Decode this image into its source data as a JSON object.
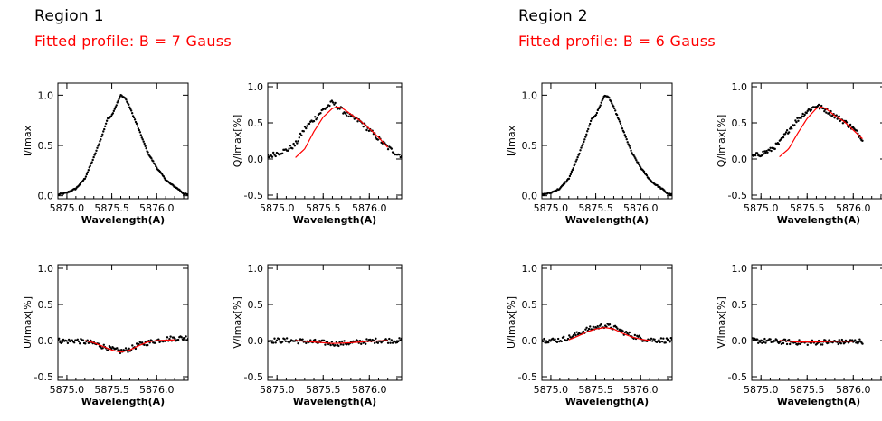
{
  "regions": [
    {
      "title": "Region 1",
      "fit_label": "Fitted profile: B =   7 Gauss"
    },
    {
      "title": "Region 2",
      "fit_label": "Fitted profile: B =   6 Gauss"
    }
  ],
  "colors": {
    "observed": "#000000",
    "fit": "#ff0000",
    "frame": "#000000"
  },
  "chart_data": [
    {
      "type": "scatter",
      "region": "Region 1",
      "xlabel": "Wavelength(A)",
      "ylabel": "I/Imax",
      "xlim": [
        5874.9,
        5876.35
      ],
      "ylim": [
        -0.03,
        1.12
      ],
      "xticks": [
        "5875.0",
        "5875.5",
        "5876.0"
      ],
      "yticks": [
        "0.0",
        "0.5",
        "1.0"
      ],
      "observed_curve": [
        [
          5874.9,
          0.01
        ],
        [
          5875.0,
          0.03
        ],
        [
          5875.1,
          0.07
        ],
        [
          5875.2,
          0.17
        ],
        [
          5875.3,
          0.38
        ],
        [
          5875.4,
          0.62
        ],
        [
          5875.45,
          0.76
        ],
        [
          5875.5,
          0.8
        ],
        [
          5875.55,
          0.9
        ],
        [
          5875.6,
          1.0
        ],
        [
          5875.65,
          0.97
        ],
        [
          5875.7,
          0.88
        ],
        [
          5875.8,
          0.66
        ],
        [
          5875.9,
          0.43
        ],
        [
          5876.0,
          0.28
        ],
        [
          5876.1,
          0.16
        ],
        [
          5876.15,
          0.12
        ],
        [
          5876.25,
          0.06
        ],
        [
          5876.3,
          0.02
        ],
        [
          5876.35,
          0.01
        ]
      ],
      "fit_curve": []
    },
    {
      "type": "scatter",
      "region": "Region 1",
      "xlabel": "Wavelength(A)",
      "ylabel": "Q/Imax[%]",
      "xlim": [
        5874.9,
        5876.35
      ],
      "ylim": [
        -0.55,
        1.05
      ],
      "xticks": [
        "5875.0",
        "5875.5",
        "5876.0"
      ],
      "yticks": [
        "-0.5",
        "0.0",
        "0.5",
        "1.0"
      ],
      "observed_curve": [
        [
          5874.9,
          0.03
        ],
        [
          5875.0,
          0.08
        ],
        [
          5875.1,
          0.12
        ],
        [
          5875.2,
          0.2
        ],
        [
          5875.3,
          0.42
        ],
        [
          5875.4,
          0.55
        ],
        [
          5875.5,
          0.68
        ],
        [
          5875.6,
          0.78
        ],
        [
          5875.7,
          0.68
        ],
        [
          5875.8,
          0.58
        ],
        [
          5875.9,
          0.52
        ],
        [
          5876.0,
          0.4
        ],
        [
          5876.1,
          0.28
        ],
        [
          5876.2,
          0.16
        ],
        [
          5876.3,
          0.07
        ],
        [
          5876.35,
          0.05
        ]
      ],
      "fit_curve": [
        [
          5875.2,
          0.02
        ],
        [
          5875.3,
          0.14
        ],
        [
          5875.4,
          0.38
        ],
        [
          5875.5,
          0.58
        ],
        [
          5875.6,
          0.7
        ],
        [
          5875.65,
          0.72
        ],
        [
          5875.7,
          0.71
        ],
        [
          5875.8,
          0.62
        ],
        [
          5875.9,
          0.53
        ],
        [
          5876.0,
          0.42
        ],
        [
          5876.1,
          0.3
        ],
        [
          5876.2,
          0.16
        ]
      ]
    },
    {
      "type": "scatter",
      "region": "Region 1",
      "xlabel": "Wavelength(A)",
      "ylabel": "U/Imax[%]",
      "xlim": [
        5874.9,
        5876.35
      ],
      "ylim": [
        -0.55,
        1.05
      ],
      "xticks": [
        "5875.0",
        "5875.5",
        "5876.0"
      ],
      "yticks": [
        "-0.5",
        "0.0",
        "0.5",
        "1.0"
      ],
      "observed_curve": [
        [
          5874.9,
          0.0
        ],
        [
          5875.0,
          -0.01
        ],
        [
          5875.1,
          0.0
        ],
        [
          5875.2,
          -0.02
        ],
        [
          5875.3,
          -0.04
        ],
        [
          5875.4,
          -0.08
        ],
        [
          5875.5,
          -0.12
        ],
        [
          5875.6,
          -0.15
        ],
        [
          5875.7,
          -0.12
        ],
        [
          5875.8,
          -0.06
        ],
        [
          5875.9,
          -0.03
        ],
        [
          5876.0,
          0.0
        ],
        [
          5876.1,
          0.02
        ],
        [
          5876.2,
          0.03
        ],
        [
          5876.35,
          0.04
        ]
      ],
      "fit_curve": [
        [
          5875.2,
          0.0
        ],
        [
          5875.3,
          -0.03
        ],
        [
          5875.4,
          -0.08
        ],
        [
          5875.5,
          -0.13
        ],
        [
          5875.6,
          -0.16
        ],
        [
          5875.7,
          -0.13
        ],
        [
          5875.8,
          -0.07
        ],
        [
          5875.9,
          -0.02
        ],
        [
          5876.0,
          0.0
        ],
        [
          5876.2,
          0.01
        ]
      ]
    },
    {
      "type": "scatter",
      "region": "Region 1",
      "xlabel": "Wavelength(A)",
      "ylabel": "V/Imax[%]",
      "xlim": [
        5874.9,
        5876.35
      ],
      "ylim": [
        -0.55,
        1.05
      ],
      "xticks": [
        "5875.0",
        "5875.5",
        "5876.0"
      ],
      "yticks": [
        "-0.5",
        "0.0",
        "0.5",
        "1.0"
      ],
      "observed_curve": [
        [
          5874.9,
          0.0
        ],
        [
          5875.1,
          0.0
        ],
        [
          5875.3,
          -0.01
        ],
        [
          5875.5,
          -0.03
        ],
        [
          5875.6,
          -0.04
        ],
        [
          5875.7,
          -0.04
        ],
        [
          5875.9,
          -0.02
        ],
        [
          5876.1,
          0.0
        ],
        [
          5876.35,
          0.0
        ]
      ],
      "fit_curve": [
        [
          5875.2,
          0.0
        ],
        [
          5875.4,
          -0.02
        ],
        [
          5875.6,
          -0.04
        ],
        [
          5875.8,
          -0.03
        ],
        [
          5876.0,
          -0.01
        ],
        [
          5876.2,
          0.0
        ]
      ]
    },
    {
      "type": "scatter",
      "region": "Region 2",
      "xlabel": "Wavelength(A)",
      "ylabel": "I/Imax",
      "xlim": [
        5874.9,
        5876.35
      ],
      "ylim": [
        -0.03,
        1.12
      ],
      "xticks": [
        "5875.0",
        "5875.5",
        "5876.0"
      ],
      "yticks": [
        "0.0",
        "0.5",
        "1.0"
      ],
      "observed_curve": [
        [
          5874.9,
          0.01
        ],
        [
          5875.0,
          0.03
        ],
        [
          5875.1,
          0.07
        ],
        [
          5875.2,
          0.17
        ],
        [
          5875.3,
          0.38
        ],
        [
          5875.4,
          0.62
        ],
        [
          5875.45,
          0.76
        ],
        [
          5875.5,
          0.8
        ],
        [
          5875.55,
          0.9
        ],
        [
          5875.6,
          1.0
        ],
        [
          5875.65,
          0.97
        ],
        [
          5875.7,
          0.88
        ],
        [
          5875.8,
          0.66
        ],
        [
          5875.9,
          0.43
        ],
        [
          5876.0,
          0.28
        ],
        [
          5876.1,
          0.16
        ],
        [
          5876.15,
          0.12
        ],
        [
          5876.25,
          0.06
        ],
        [
          5876.3,
          0.02
        ],
        [
          5876.35,
          0.01
        ]
      ],
      "fit_curve": []
    },
    {
      "type": "scatter",
      "region": "Region 2",
      "xlabel": "Wavelength(A)",
      "ylabel": "Q/Imax[%]",
      "xlim": [
        5874.9,
        5876.35
      ],
      "ylim": [
        -0.55,
        1.05
      ],
      "xticks": [
        "5875.0",
        "5875.5",
        "5876.0"
      ],
      "yticks": [
        "-0.5",
        "0.0",
        "0.5",
        "1.0"
      ],
      "observed_curve": [
        [
          5874.9,
          0.03
        ],
        [
          5875.0,
          0.07
        ],
        [
          5875.1,
          0.12
        ],
        [
          5875.2,
          0.22
        ],
        [
          5875.3,
          0.4
        ],
        [
          5875.4,
          0.55
        ],
        [
          5875.5,
          0.66
        ],
        [
          5875.6,
          0.74
        ],
        [
          5875.7,
          0.68
        ],
        [
          5875.8,
          0.6
        ],
        [
          5875.9,
          0.52
        ],
        [
          5876.0,
          0.42
        ],
        [
          5876.1,
          0.28
        ]
      ],
      "fit_curve": [
        [
          5875.2,
          0.03
        ],
        [
          5875.3,
          0.14
        ],
        [
          5875.4,
          0.36
        ],
        [
          5875.5,
          0.56
        ],
        [
          5875.6,
          0.7
        ],
        [
          5875.65,
          0.72
        ],
        [
          5875.7,
          0.7
        ],
        [
          5875.8,
          0.6
        ],
        [
          5875.9,
          0.52
        ],
        [
          5876.0,
          0.4
        ],
        [
          5876.1,
          0.28
        ]
      ]
    },
    {
      "type": "scatter",
      "region": "Region 2",
      "xlabel": "Wavelength(A)",
      "ylabel": "U/Imax[%]",
      "xlim": [
        5874.9,
        5876.35
      ],
      "ylim": [
        -0.55,
        1.05
      ],
      "xticks": [
        "5875.0",
        "5875.5",
        "5876.0"
      ],
      "yticks": [
        "-0.5",
        "0.0",
        "0.5",
        "1.0"
      ],
      "observed_curve": [
        [
          5874.9,
          0.01
        ],
        [
          5875.0,
          0.0
        ],
        [
          5875.1,
          0.01
        ],
        [
          5875.2,
          0.04
        ],
        [
          5875.3,
          0.09
        ],
        [
          5875.4,
          0.15
        ],
        [
          5875.5,
          0.18
        ],
        [
          5875.6,
          0.21
        ],
        [
          5875.7,
          0.18
        ],
        [
          5875.8,
          0.12
        ],
        [
          5875.9,
          0.07
        ],
        [
          5876.0,
          0.03
        ],
        [
          5876.1,
          0.01
        ],
        [
          5876.35,
          0.0
        ]
      ],
      "fit_curve": [
        [
          5875.2,
          0.01
        ],
        [
          5875.3,
          0.06
        ],
        [
          5875.4,
          0.12
        ],
        [
          5875.5,
          0.16
        ],
        [
          5875.6,
          0.18
        ],
        [
          5875.7,
          0.16
        ],
        [
          5875.8,
          0.1
        ],
        [
          5875.9,
          0.05
        ],
        [
          5876.0,
          0.02
        ],
        [
          5876.1,
          0.0
        ]
      ]
    },
    {
      "type": "scatter",
      "region": "Region 2",
      "xlabel": "Wavelength(A)",
      "ylabel": "V/Imax[%]",
      "xlim": [
        5874.9,
        5876.35
      ],
      "ylim": [
        -0.55,
        1.05
      ],
      "xticks": [
        "5875.0",
        "5875.5",
        "5876.0"
      ],
      "yticks": [
        "-0.5",
        "0.0",
        "0.5",
        "1.0"
      ],
      "observed_curve": [
        [
          5874.9,
          0.0
        ],
        [
          5875.1,
          -0.01
        ],
        [
          5875.3,
          -0.02
        ],
        [
          5875.5,
          -0.03
        ],
        [
          5875.7,
          -0.02
        ],
        [
          5875.9,
          -0.02
        ],
        [
          5876.1,
          -0.01
        ]
      ],
      "fit_curve": [
        [
          5875.2,
          0.0
        ],
        [
          5875.4,
          -0.02
        ],
        [
          5875.6,
          -0.02
        ],
        [
          5875.8,
          -0.01
        ],
        [
          5876.0,
          -0.01
        ]
      ]
    }
  ]
}
